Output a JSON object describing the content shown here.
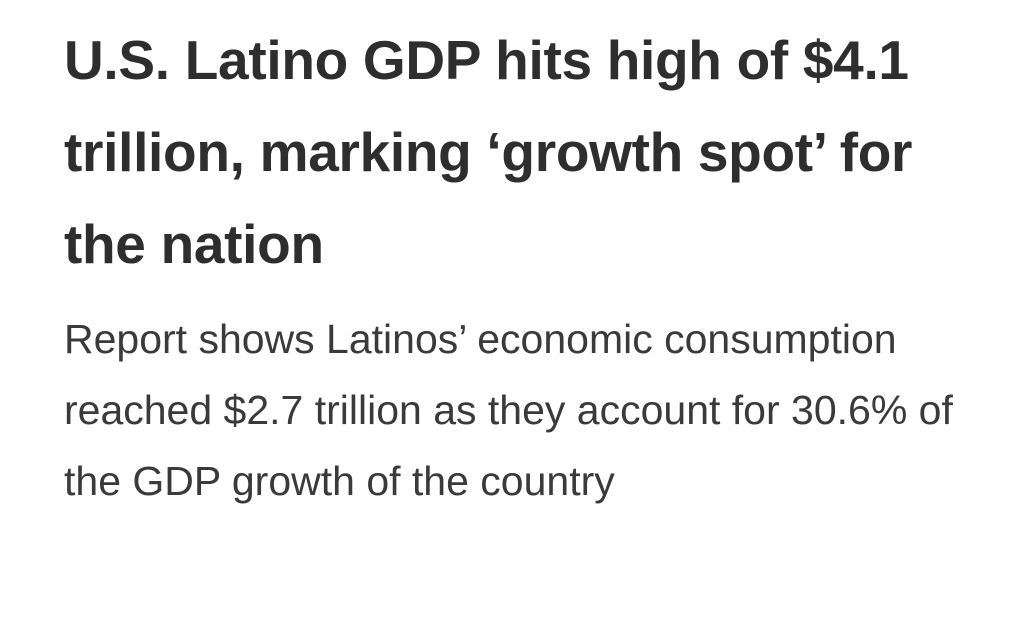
{
  "article": {
    "headline": "U.S. Latino GDP hits high of $4.1 trillion, marking ‘growth spot’ for the nation",
    "subheadline": "Report shows Latinos’ economic consumption reached $2.7 trillion as they account for 30.6% of the GDP growth of the country"
  }
}
